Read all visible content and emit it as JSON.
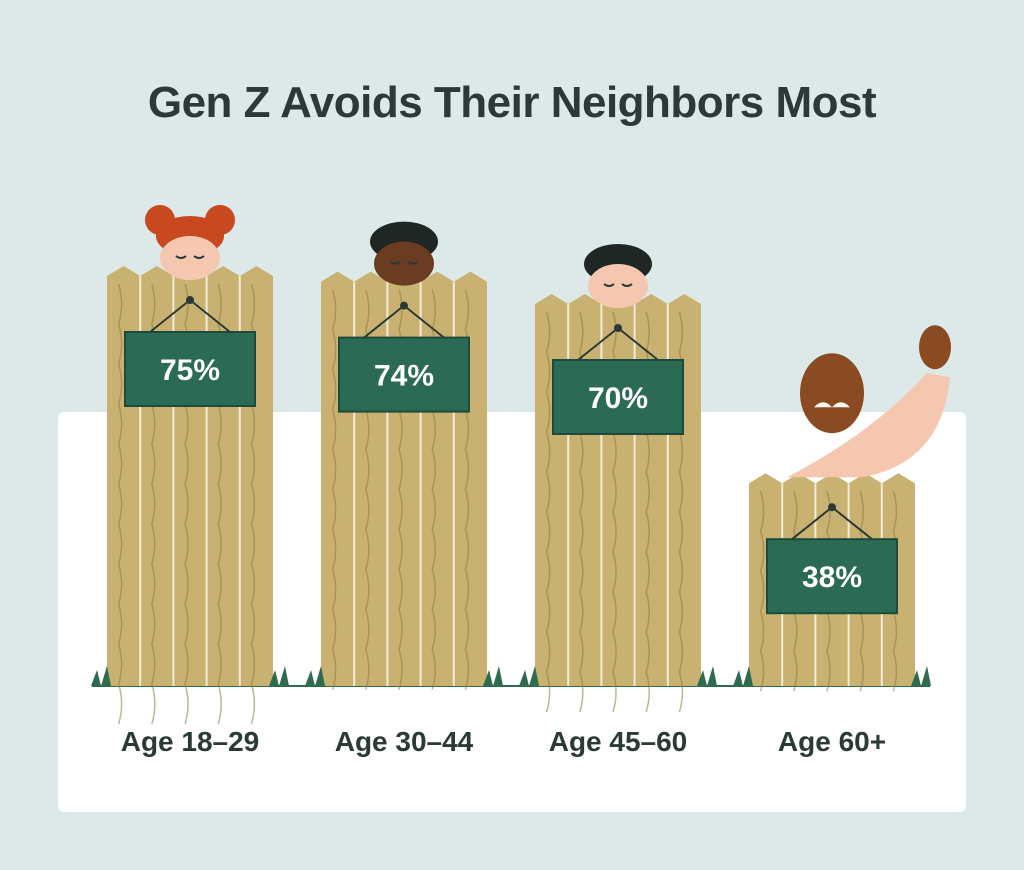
{
  "chart_data": {
    "type": "bar",
    "title": "Gen Z Avoids Their Neighbors Most",
    "categories": [
      "Age 18–29",
      "Age 30–44",
      "Age 45–60",
      "Age 60+"
    ],
    "values": [
      75,
      74,
      70,
      38
    ],
    "value_labels": [
      "75%",
      "74%",
      "70%",
      "38%"
    ],
    "xlabel": "",
    "ylabel": "",
    "ylim": [
      0,
      100
    ],
    "grid": false,
    "legend": "none"
  },
  "colors": {
    "background": "#dce9e8",
    "panel": "#ffffff",
    "fence": "#c9b271",
    "fence_grain": "#8f7a3e",
    "sign": "#2b6a55",
    "title_text": "#2b3a36",
    "grass": "#2f6b4e"
  }
}
